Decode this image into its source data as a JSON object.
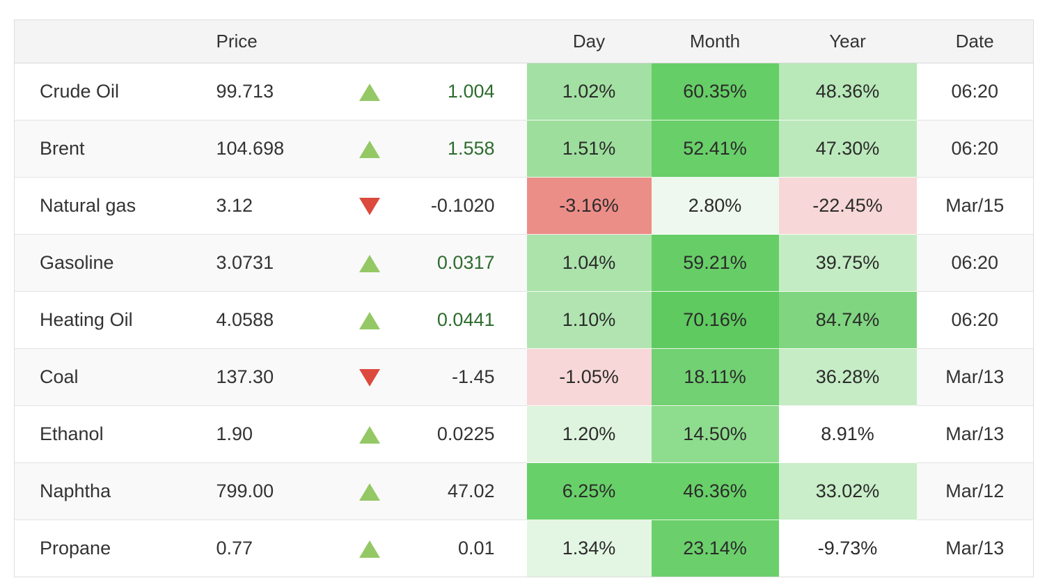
{
  "table": {
    "headers": {
      "name": "",
      "price": "Price",
      "day": "Day",
      "month": "Month",
      "year": "Year",
      "date": "Date"
    },
    "colors": {
      "header_bg": "#f4f4f4",
      "row_stripe": "#f9f9f9",
      "border": "#dddddd",
      "text": "#333333",
      "green_text": "#2e6c2e",
      "up_arrow": "#94c865",
      "down_arrow": "#dc4a3d"
    },
    "rows": [
      {
        "name": "Crude Oil",
        "price": "99.713",
        "direction": "up",
        "change": "1.004",
        "change_green": true,
        "day": {
          "text": "1.02%",
          "bg": "#a3e0a3",
          "green_text": true
        },
        "month": {
          "text": "60.35%",
          "bg": "#66ce66"
        },
        "year": {
          "text": "48.36%",
          "bg": "#b9e8b9"
        },
        "date": "06:20"
      },
      {
        "name": "Brent",
        "price": "104.698",
        "direction": "up",
        "change": "1.558",
        "change_green": true,
        "day": {
          "text": "1.51%",
          "bg": "#9dde9d",
          "green_text": true
        },
        "month": {
          "text": "52.41%",
          "bg": "#69cf69"
        },
        "year": {
          "text": "47.30%",
          "bg": "#bce9bc"
        },
        "date": "06:20"
      },
      {
        "name": "Natural gas",
        "price": "3.12",
        "direction": "down",
        "change": "-0.1020",
        "change_green": false,
        "day": {
          "text": "-3.16%",
          "bg": "#ec8e88"
        },
        "month": {
          "text": "2.80%",
          "bg": "#eef8ee"
        },
        "year": {
          "text": "-22.45%",
          "bg": "#f7d7d7"
        },
        "date": "Mar/15"
      },
      {
        "name": "Gasoline",
        "price": "3.0731",
        "direction": "up",
        "change": "0.0317",
        "change_green": true,
        "day": {
          "text": "1.04%",
          "bg": "#abe3ab",
          "green_text": true
        },
        "month": {
          "text": "59.21%",
          "bg": "#67ce67"
        },
        "year": {
          "text": "39.75%",
          "bg": "#c4ecc4"
        },
        "date": "06:20"
      },
      {
        "name": "Heating Oil",
        "price": "4.0588",
        "direction": "up",
        "change": "0.0441",
        "change_green": true,
        "day": {
          "text": "1.10%",
          "bg": "#b1e4b1",
          "green_text": true
        },
        "month": {
          "text": "70.16%",
          "bg": "#5fca5f"
        },
        "year": {
          "text": "84.74%",
          "bg": "#80d680"
        },
        "date": "06:20"
      },
      {
        "name": "Coal",
        "price": "137.30",
        "direction": "down",
        "change": "-1.45",
        "change_green": false,
        "day": {
          "text": "-1.05%",
          "bg": "#f7d7d7"
        },
        "month": {
          "text": "18.11%",
          "bg": "#72d172"
        },
        "year": {
          "text": "36.28%",
          "bg": "#c6ecc6"
        },
        "date": "Mar/13"
      },
      {
        "name": "Ethanol",
        "price": "1.90",
        "direction": "up",
        "change": "0.0225",
        "change_green": false,
        "day": {
          "text": "1.20%",
          "bg": "#def4de"
        },
        "month": {
          "text": "14.50%",
          "bg": "#8edd8e"
        },
        "year": {
          "text": "8.91%",
          "bg": ""
        },
        "date": "Mar/13"
      },
      {
        "name": "Naphtha",
        "price": "799.00",
        "direction": "up",
        "change": "47.02",
        "change_green": false,
        "day": {
          "text": "6.25%",
          "bg": "#68d068"
        },
        "month": {
          "text": "46.36%",
          "bg": "#68d068"
        },
        "year": {
          "text": "33.02%",
          "bg": "#c9eec9"
        },
        "date": "Mar/12"
      },
      {
        "name": "Propane",
        "price": "0.77",
        "direction": "up",
        "change": "0.01",
        "change_green": false,
        "day": {
          "text": "1.34%",
          "bg": "#e3f6e3"
        },
        "month": {
          "text": "23.14%",
          "bg": "#6bd06b"
        },
        "year": {
          "text": "-9.73%",
          "bg": ""
        },
        "date": "Mar/13"
      }
    ]
  }
}
